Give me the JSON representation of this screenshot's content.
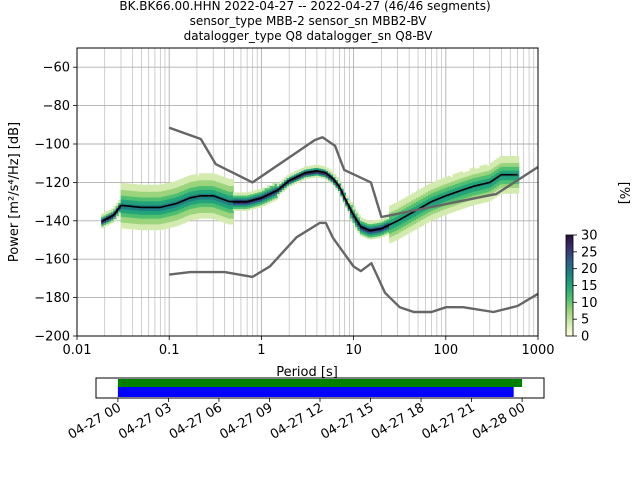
{
  "header": {
    "line1": "BK.BK66.00.HHN   2022-04-27 -- 2022-04-27  (46/46 segments)",
    "line2": "sensor_type MBB-2 sensor_sn MBB2-BV",
    "line3": "datalogger_type Q8 datalogger_sn Q8-BV"
  },
  "colorbar": {
    "label": "[%]",
    "ticks": [
      "0",
      "5",
      "10",
      "15",
      "20",
      "25",
      "30"
    ],
    "range": [
      0,
      30
    ],
    "colormap": [
      "#ffffe0",
      "#d4ebb0",
      "#9bd47c",
      "#4fbf70",
      "#22a37a",
      "#1e7f82",
      "#2e5a8a",
      "#3a2f6b",
      "#2a0f3a"
    ]
  },
  "chart_data": [
    {
      "type": "line",
      "subtype": "probabilistic_psd",
      "xscale": "log",
      "xlabel": "Period [s]",
      "ylabel": "Power [m²/s⁴/Hz] [dB]",
      "xlim": [
        0.01,
        1000
      ],
      "ylim": [
        -200,
        -50
      ],
      "xticks": [
        0.01,
        0.1,
        1,
        10,
        100,
        1000
      ],
      "xtick_labels": [
        "0.01",
        "0.1",
        "1",
        "10",
        "100",
        "1000"
      ],
      "yticks": [
        -200,
        -180,
        -160,
        -140,
        -120,
        -100,
        -80,
        -60
      ],
      "ytick_labels": [
        "−200",
        "−180",
        "−160",
        "−140",
        "−120",
        "−100",
        "−80",
        "−60"
      ],
      "grid": true,
      "series": [
        {
          "key": "mean",
          "color": "#000000",
          "x": [
            0.019,
            0.025,
            0.03,
            0.05,
            0.08,
            0.12,
            0.17,
            0.22,
            0.3,
            0.45,
            0.7,
            1.0,
            1.5,
            2.0,
            3.0,
            4.0,
            5.0,
            6.0,
            7.0,
            8.0,
            10.0,
            12.0,
            15.0,
            20.0,
            30.0,
            50.0,
            70.0,
            100.0,
            150.0,
            200.0,
            300.0,
            400.0,
            600.0
          ],
          "y": [
            -140,
            -137,
            -132,
            -133,
            -133,
            -131,
            -128,
            -127,
            -127,
            -130,
            -130,
            -128,
            -124,
            -119,
            -115,
            -114,
            -115,
            -118,
            -122,
            -128,
            -137,
            -143,
            -145,
            -144,
            -140,
            -134,
            -130,
            -127,
            -124,
            -122,
            -120,
            -116,
            -116
          ]
        },
        {
          "key": "nhnm",
          "color": "#666666",
          "x": [
            0.1,
            0.22,
            0.32,
            0.8,
            3.8,
            4.6,
            6.3,
            7.9,
            15.4,
            20.0,
            354.8,
            1000.0
          ],
          "y": [
            -91.5,
            -97.4,
            -110.5,
            -120.0,
            -97.9,
            -96.5,
            -101.0,
            -113.5,
            -120.0,
            -138.0,
            -126.0,
            -112.0
          ]
        },
        {
          "key": "nlnm",
          "color": "#666666",
          "x": [
            0.1,
            0.17,
            0.4,
            0.8,
            1.24,
            2.4,
            4.3,
            5.0,
            6.0,
            10.0,
            12.0,
            15.6,
            21.9,
            31.6,
            45.0,
            70.0,
            101.0,
            154.0,
            328.0,
            600.0,
            1000.0
          ],
          "y": [
            -168.0,
            -166.7,
            -166.7,
            -169.2,
            -163.7,
            -148.6,
            -141.1,
            -141.1,
            -149.0,
            -163.8,
            -166.2,
            -162.1,
            -177.5,
            -185.0,
            -187.5,
            -187.5,
            -185.0,
            -185.0,
            -187.5,
            -184.4,
            -178.0
          ]
        }
      ]
    },
    {
      "type": "bar",
      "subtype": "data_coverage_timeline",
      "x_tick_labels": [
        "04-27 00",
        "04-27 03",
        "04-27 06",
        "04-27 09",
        "04-27 12",
        "04-27 15",
        "04-27 18",
        "04-27 21",
        "04-28 00"
      ],
      "x_range_hours": [
        -1.3,
        25.3
      ],
      "bars": [
        {
          "key": "data_available",
          "color": "#008000",
          "start_hour": 0,
          "end_hour": 24.0
        },
        {
          "key": "psd_segments",
          "color": "#0000ff",
          "start_hour": 0,
          "end_hour": 23.5
        }
      ]
    }
  ]
}
